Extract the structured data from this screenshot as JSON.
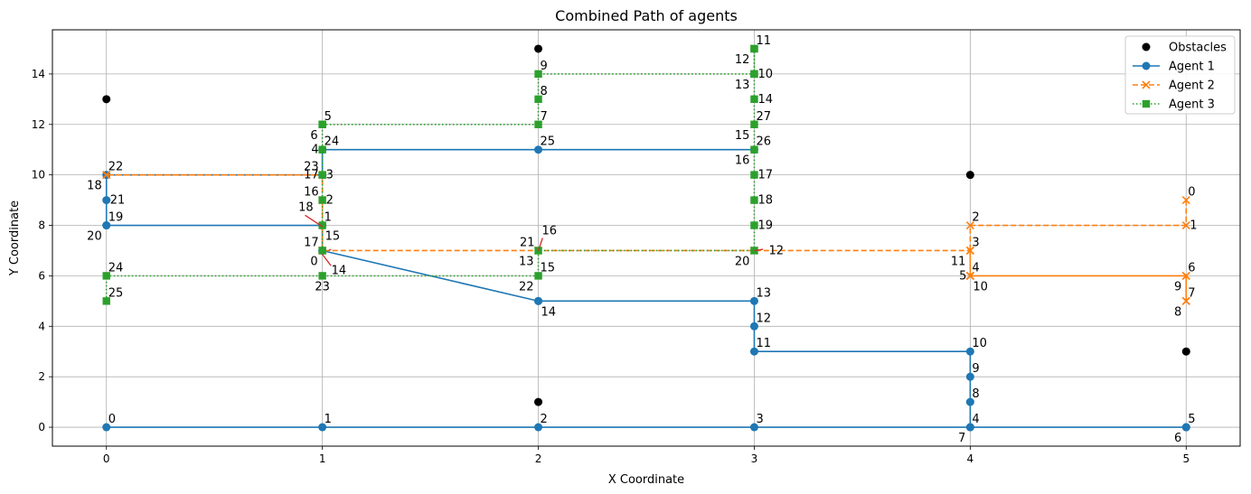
{
  "chart_data": {
    "type": "line",
    "title": "Combined Path of agents",
    "xlabel": "X Coordinate",
    "ylabel": "Y Coordinate",
    "xlim": [
      -0.25,
      5.25
    ],
    "ylim": [
      -0.75,
      15.75
    ],
    "xticks": [
      0,
      1,
      2,
      3,
      4,
      5
    ],
    "yticks": [
      0,
      2,
      4,
      6,
      8,
      10,
      12,
      14
    ],
    "grid": true,
    "legend": "upper right",
    "obstacles": {
      "name": "Obstacles",
      "color": "#000000",
      "points": [
        [
          0,
          13
        ],
        [
          2,
          15
        ],
        [
          2,
          1
        ],
        [
          4,
          10
        ],
        [
          5,
          3
        ]
      ]
    },
    "series": [
      {
        "name": "Agent 1",
        "color": "#1f77b4",
        "linestyle": "solid",
        "marker": "circle",
        "points": [
          [
            0,
            0
          ],
          [
            1,
            0
          ],
          [
            2,
            0
          ],
          [
            3,
            0
          ],
          [
            4,
            0
          ],
          [
            5,
            0
          ],
          [
            5,
            0
          ],
          [
            4,
            0
          ],
          [
            4,
            1
          ],
          [
            4,
            2
          ],
          [
            4,
            3
          ],
          [
            3,
            3
          ],
          [
            3,
            4
          ],
          [
            3,
            5
          ],
          [
            2,
            5
          ],
          [
            2,
            5
          ],
          [
            1,
            7
          ],
          [
            1,
            7
          ],
          [
            1,
            8
          ],
          [
            0,
            8
          ],
          [
            0,
            8
          ],
          [
            0,
            9
          ],
          [
            0,
            10
          ],
          [
            1,
            10
          ],
          [
            1,
            11
          ],
          [
            2,
            11
          ],
          [
            3,
            11
          ]
        ]
      },
      {
        "name": "Agent 2",
        "color": "#ff7f0e",
        "linestyle": "dashed",
        "marker": "x",
        "points": [
          [
            5,
            9
          ],
          [
            5,
            8
          ],
          [
            4,
            8
          ],
          [
            4,
            7
          ],
          [
            4,
            6
          ],
          [
            4,
            6
          ],
          [
            5,
            6
          ],
          [
            5,
            5
          ],
          [
            5,
            5
          ],
          [
            5,
            6
          ],
          [
            4,
            6
          ],
          [
            4,
            7
          ],
          [
            3,
            7
          ],
          [
            2,
            7
          ],
          [
            1,
            7
          ],
          [
            1,
            7
          ],
          [
            1,
            9
          ],
          [
            1,
            10
          ],
          [
            0,
            10
          ],
          [
            0,
            10
          ],
          [
            1,
            10
          ]
        ]
      },
      {
        "name": "Agent 3",
        "color": "#2ca02c",
        "linestyle": "dotted",
        "marker": "square",
        "points": [
          [
            1,
            7
          ],
          [
            1,
            8
          ],
          [
            1,
            9
          ],
          [
            1,
            10
          ],
          [
            1,
            11
          ],
          [
            1,
            12
          ],
          [
            1,
            12
          ],
          [
            2,
            12
          ],
          [
            2,
            13
          ],
          [
            2,
            14
          ],
          [
            3,
            14
          ],
          [
            3,
            15
          ],
          [
            3,
            15
          ],
          [
            3,
            14
          ],
          [
            3,
            13
          ],
          [
            3,
            12
          ],
          [
            3,
            11
          ],
          [
            3,
            10
          ],
          [
            3,
            9
          ],
          [
            3,
            8
          ],
          [
            3,
            7
          ],
          [
            2,
            7
          ],
          [
            2,
            6
          ],
          [
            1,
            6
          ],
          [
            0,
            6
          ],
          [
            0,
            5
          ]
        ]
      }
    ],
    "annotations": [
      {
        "text": "0",
        "x": 0,
        "y": 0,
        "pos": "ur"
      },
      {
        "text": "1",
        "x": 1,
        "y": 0,
        "pos": "ur"
      },
      {
        "text": "2",
        "x": 2,
        "y": 0,
        "pos": "ur"
      },
      {
        "text": "3",
        "x": 3,
        "y": 0,
        "pos": "ur"
      },
      {
        "text": "4",
        "x": 4,
        "y": 0,
        "pos": "ur"
      },
      {
        "text": "5",
        "x": 5,
        "y": 0,
        "pos": "ur"
      },
      {
        "text": "6",
        "x": 5,
        "y": 0,
        "pos": "ll"
      },
      {
        "text": "7",
        "x": 4,
        "y": 0,
        "pos": "ll"
      },
      {
        "text": "8",
        "x": 4,
        "y": 1,
        "pos": "ur"
      },
      {
        "text": "9",
        "x": 4,
        "y": 2,
        "pos": "ur"
      },
      {
        "text": "10",
        "x": 4,
        "y": 3,
        "pos": "ur"
      },
      {
        "text": "11",
        "x": 3,
        "y": 3,
        "pos": "ur"
      },
      {
        "text": "12",
        "x": 3,
        "y": 4,
        "pos": "ur"
      },
      {
        "text": "13",
        "x": 3,
        "y": 5,
        "pos": "ur"
      },
      {
        "text": "14",
        "x": 2,
        "y": 5,
        "pos": "lr"
      },
      {
        "text": "15",
        "x": 1,
        "y": 8,
        "pos": "lr"
      },
      {
        "text": "17",
        "x": 1,
        "y": 7,
        "pos": "ul"
      },
      {
        "text": "19",
        "x": 0,
        "y": 8,
        "pos": "ur"
      },
      {
        "text": "20",
        "x": 0,
        "y": 8,
        "pos": "ll"
      },
      {
        "text": "21",
        "x": 0,
        "y": 9,
        "pos": "r"
      },
      {
        "text": "22",
        "x": 0,
        "y": 10,
        "pos": "ur"
      },
      {
        "text": "23",
        "x": 1,
        "y": 10,
        "pos": "ul"
      },
      {
        "text": "24",
        "x": 1,
        "y": 11,
        "pos": "ur"
      },
      {
        "text": "25",
        "x": 2,
        "y": 11,
        "pos": "ur"
      },
      {
        "text": "26",
        "x": 3,
        "y": 11,
        "pos": "ur"
      },
      {
        "text": "0",
        "x": 5,
        "y": 9,
        "pos": "ur"
      },
      {
        "text": "1",
        "x": 5,
        "y": 8,
        "pos": "r"
      },
      {
        "text": "2",
        "x": 4,
        "y": 8,
        "pos": "ur"
      },
      {
        "text": "3",
        "x": 4,
        "y": 7,
        "pos": "ur"
      },
      {
        "text": "4",
        "x": 4,
        "y": 6,
        "pos": "ur"
      },
      {
        "text": "5",
        "x": 4,
        "y": 6,
        "pos": "l"
      },
      {
        "text": "6",
        "x": 5,
        "y": 6,
        "pos": "ur"
      },
      {
        "text": "7",
        "x": 5,
        "y": 5,
        "pos": "ur"
      },
      {
        "text": "8",
        "x": 5,
        "y": 5,
        "pos": "ll"
      },
      {
        "text": "9",
        "x": 5,
        "y": 6,
        "pos": "ll"
      },
      {
        "text": "10",
        "x": 4,
        "y": 6,
        "pos": "lr"
      },
      {
        "text": "11",
        "x": 4,
        "y": 7,
        "pos": "ll"
      },
      {
        "text": "12",
        "x": 3,
        "y": 7,
        "pos": "farr"
      },
      {
        "text": "13",
        "x": 2,
        "y": 7,
        "pos": "ll"
      },
      {
        "text": "14",
        "x": 1,
        "y": 7,
        "pos": "farlr"
      },
      {
        "text": "16",
        "x": 1,
        "y": 9,
        "pos": "ul"
      },
      {
        "text": "17",
        "x": 1,
        "y": 10,
        "pos": "l"
      },
      {
        "text": "18",
        "x": 0,
        "y": 10,
        "pos": "ll"
      },
      {
        "text": "3",
        "x": 1,
        "y": 10,
        "pos": "r"
      },
      {
        "text": "0",
        "x": 1,
        "y": 7,
        "pos": "ll"
      },
      {
        "text": "1",
        "x": 1,
        "y": 8,
        "pos": "ur"
      },
      {
        "text": "2",
        "x": 1,
        "y": 9,
        "pos": "r"
      },
      {
        "text": "4",
        "x": 1,
        "y": 11,
        "pos": "l"
      },
      {
        "text": "5",
        "x": 1,
        "y": 12,
        "pos": "ur"
      },
      {
        "text": "6",
        "x": 1,
        "y": 12,
        "pos": "ll"
      },
      {
        "text": "7",
        "x": 2,
        "y": 12,
        "pos": "ur"
      },
      {
        "text": "8",
        "x": 2,
        "y": 13,
        "pos": "ur"
      },
      {
        "text": "9",
        "x": 2,
        "y": 14,
        "pos": "ur"
      },
      {
        "text": "10",
        "x": 3,
        "y": 14,
        "pos": "r"
      },
      {
        "text": "11",
        "x": 3,
        "y": 15,
        "pos": "ur"
      },
      {
        "text": "12",
        "x": 3,
        "y": 15,
        "pos": "ll"
      },
      {
        "text": "13",
        "x": 3,
        "y": 14,
        "pos": "ll"
      },
      {
        "text": "14",
        "x": 3,
        "y": 13,
        "pos": "r"
      },
      {
        "text": "15",
        "x": 3,
        "y": 12,
        "pos": "ll"
      },
      {
        "text": "16",
        "x": 3,
        "y": 11,
        "pos": "ll"
      },
      {
        "text": "17",
        "x": 3,
        "y": 10,
        "pos": "r"
      },
      {
        "text": "18",
        "x": 3,
        "y": 9,
        "pos": "r"
      },
      {
        "text": "19",
        "x": 3,
        "y": 8,
        "pos": "r"
      },
      {
        "text": "20",
        "x": 3,
        "y": 7,
        "pos": "ll"
      },
      {
        "text": "21",
        "x": 2,
        "y": 7,
        "pos": "ul"
      },
      {
        "text": "22",
        "x": 2,
        "y": 6,
        "pos": "ll"
      },
      {
        "text": "23",
        "x": 1,
        "y": 6,
        "pos": "lc"
      },
      {
        "text": "24",
        "x": 0,
        "y": 6,
        "pos": "ur"
      },
      {
        "text": "25",
        "x": 0,
        "y": 5,
        "pos": "ur"
      },
      {
        "text": "27",
        "x": 3,
        "y": 12,
        "pos": "ur"
      },
      {
        "text": "15",
        "x": 2,
        "y": 6,
        "pos": "ur"
      },
      {
        "text": "16",
        "x": 2,
        "y": 7,
        "pos": "farur"
      },
      {
        "text": "18",
        "x": 1,
        "y": 8,
        "pos": "farul"
      }
    ],
    "arrows": [
      {
        "from": [
          0.92,
          8.4
        ],
        "to": [
          1,
          7.95
        ],
        "color": "#d62728"
      },
      {
        "from": [
          1.04,
          6.4
        ],
        "to": [
          1,
          6.85
        ],
        "color": "#d62728"
      },
      {
        "from": [
          2.02,
          7.5
        ],
        "to": [
          2,
          7
        ],
        "color": "#d62728"
      },
      {
        "from": [
          3.04,
          7.05
        ],
        "to": [
          3,
          7
        ],
        "color": "#d62728"
      },
      {
        "from": [
          1.04,
          7.05
        ],
        "to": [
          1.03,
          7
        ],
        "color": "#d62728"
      }
    ]
  }
}
